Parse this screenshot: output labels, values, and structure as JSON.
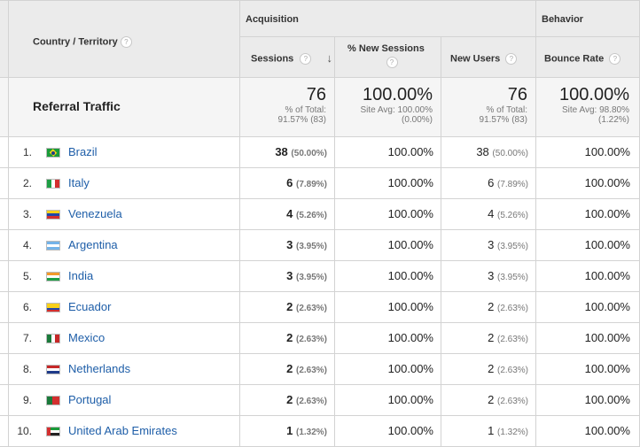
{
  "headers": {
    "country": "Country / Territory",
    "acquisition": "Acquisition",
    "behavior": "Behavior",
    "sessions": "Sessions",
    "new_sessions": "% New Sessions",
    "new_users": "New Users",
    "bounce_rate": "Bounce Rate",
    "help_glyph": "?",
    "sort_glyph": "↓"
  },
  "summary": {
    "label": "Referral Traffic",
    "sessions": "76",
    "sessions_sub1": "% of Total:",
    "sessions_sub2": "91.57% (83)",
    "new_sessions": "100.00%",
    "new_sessions_sub1": "Site Avg: 100.00%",
    "new_sessions_sub2": "(0.00%)",
    "new_users": "76",
    "new_users_sub1": "% of Total:",
    "new_users_sub2": "91.57% (83)",
    "bounce_rate": "100.00%",
    "bounce_rate_sub1": "Site Avg: 98.80%",
    "bounce_rate_sub2": "(1.22%)"
  },
  "rows": [
    {
      "idx": "1.",
      "country": "Brazil",
      "sessions": "38",
      "sessions_pct": "(50.00%)",
      "new_sessions": "100.00%",
      "new_users": "38",
      "new_users_pct": "(50.00%)",
      "bounce": "100.00%",
      "flag": "brazil-flag-icon"
    },
    {
      "idx": "2.",
      "country": "Italy",
      "sessions": "6",
      "sessions_pct": "(7.89%)",
      "new_sessions": "100.00%",
      "new_users": "6",
      "new_users_pct": "(7.89%)",
      "bounce": "100.00%",
      "flag": "italy-flag-icon"
    },
    {
      "idx": "3.",
      "country": "Venezuela",
      "sessions": "4",
      "sessions_pct": "(5.26%)",
      "new_sessions": "100.00%",
      "new_users": "4",
      "new_users_pct": "(5.26%)",
      "bounce": "100.00%",
      "flag": "venezuela-flag-icon"
    },
    {
      "idx": "4.",
      "country": "Argentina",
      "sessions": "3",
      "sessions_pct": "(3.95%)",
      "new_sessions": "100.00%",
      "new_users": "3",
      "new_users_pct": "(3.95%)",
      "bounce": "100.00%",
      "flag": "argentina-flag-icon"
    },
    {
      "idx": "5.",
      "country": "India",
      "sessions": "3",
      "sessions_pct": "(3.95%)",
      "new_sessions": "100.00%",
      "new_users": "3",
      "new_users_pct": "(3.95%)",
      "bounce": "100.00%",
      "flag": "india-flag-icon"
    },
    {
      "idx": "6.",
      "country": "Ecuador",
      "sessions": "2",
      "sessions_pct": "(2.63%)",
      "new_sessions": "100.00%",
      "new_users": "2",
      "new_users_pct": "(2.63%)",
      "bounce": "100.00%",
      "flag": "ecuador-flag-icon"
    },
    {
      "idx": "7.",
      "country": "Mexico",
      "sessions": "2",
      "sessions_pct": "(2.63%)",
      "new_sessions": "100.00%",
      "new_users": "2",
      "new_users_pct": "(2.63%)",
      "bounce": "100.00%",
      "flag": "mexico-flag-icon"
    },
    {
      "idx": "8.",
      "country": "Netherlands",
      "sessions": "2",
      "sessions_pct": "(2.63%)",
      "new_sessions": "100.00%",
      "new_users": "2",
      "new_users_pct": "(2.63%)",
      "bounce": "100.00%",
      "flag": "netherlands-flag-icon"
    },
    {
      "idx": "9.",
      "country": "Portugal",
      "sessions": "2",
      "sessions_pct": "(2.63%)",
      "new_sessions": "100.00%",
      "new_users": "2",
      "new_users_pct": "(2.63%)",
      "bounce": "100.00%",
      "flag": "portugal-flag-icon"
    },
    {
      "idx": "10.",
      "country": "United Arab Emirates",
      "sessions": "1",
      "sessions_pct": "(1.32%)",
      "new_sessions": "100.00%",
      "new_users": "1",
      "new_users_pct": "(1.32%)",
      "bounce": "100.00%",
      "flag": "uae-flag-icon"
    }
  ],
  "colors": {
    "header_bg": "#ebebeb",
    "summary_bg": "#f5f5f5",
    "link": "#1e5ea8",
    "border": "#d3d3d3"
  }
}
